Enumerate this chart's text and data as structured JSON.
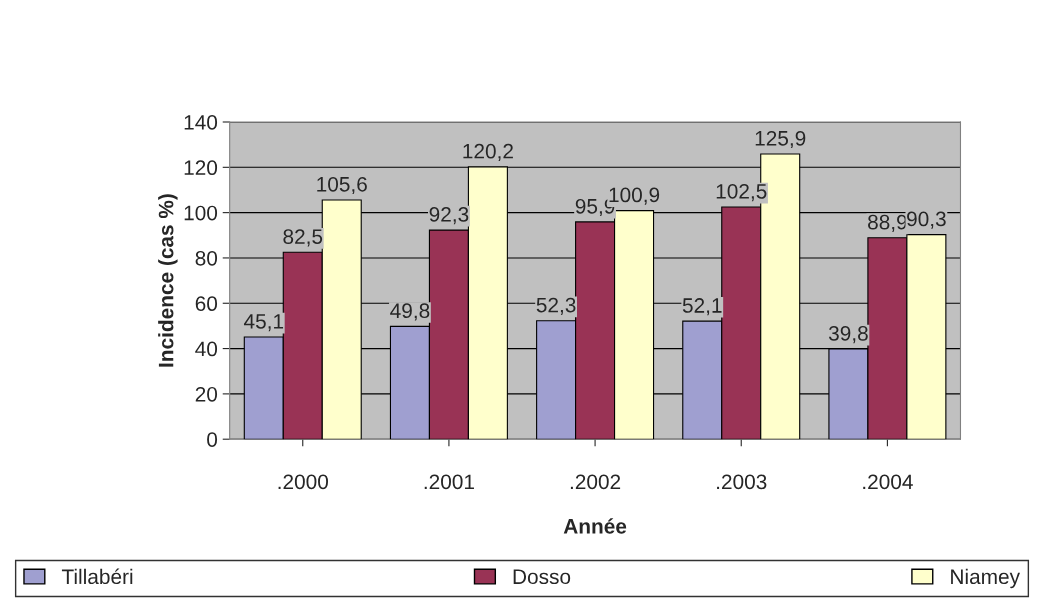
{
  "chart_data": {
    "type": "bar",
    "xlabel": "Année",
    "ylabel": "Incidence (cas %)",
    "categories": [
      ".2000",
      ".2001",
      ".2002",
      ".2003",
      ".2004"
    ],
    "series": [
      {
        "name": "Tillabéri",
        "color": "#9f9fd0",
        "values": [
          45.1,
          49.8,
          52.3,
          52.1,
          39.8
        ],
        "value_labels": [
          "45,1",
          "49,8",
          "52,3",
          "52,1",
          "39,8"
        ]
      },
      {
        "name": "Dosso",
        "color": "#993355",
        "values": [
          82.5,
          92.3,
          95.9,
          102.5,
          88.9
        ],
        "value_labels": [
          "82,5",
          "92,3",
          "95,9",
          "102,5",
          "88,9"
        ]
      },
      {
        "name": "Niamey",
        "color": "#ffffcc",
        "values": [
          105.6,
          120.2,
          100.9,
          125.9,
          90.3
        ],
        "value_labels": [
          "105,6",
          "120,2",
          "100,9",
          "125,9",
          "90,3"
        ]
      }
    ],
    "ylim": [
      0,
      140
    ],
    "yticks": [
      0,
      20,
      40,
      60,
      80,
      100,
      120,
      140
    ],
    "grid": "y",
    "legend": "bottom"
  }
}
